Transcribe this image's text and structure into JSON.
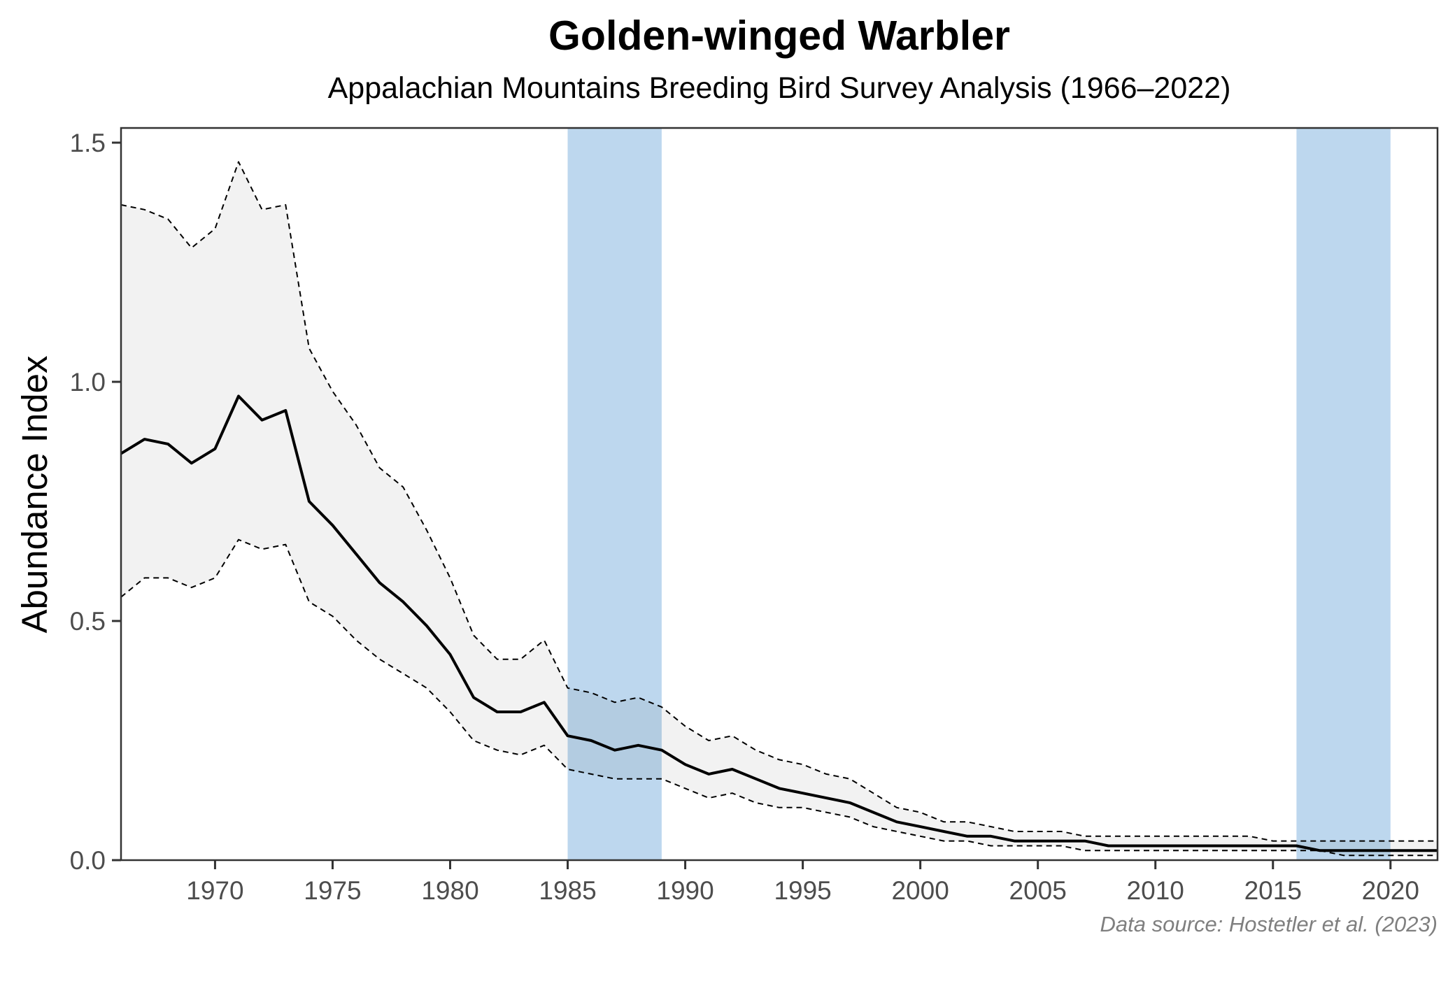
{
  "chart_data": {
    "type": "line",
    "title": "Golden-winged Warbler",
    "subtitle": "Appalachian Mountains Breeding Bird Survey Analysis (1966–2022)",
    "xlabel": "",
    "ylabel": "Abundance Index",
    "caption": "Data source: Hostetler et al. (2023)",
    "xlim": [
      1966,
      2022
    ],
    "ylim": [
      0,
      1.5
    ],
    "x_ticks": [
      1970,
      1975,
      1980,
      1985,
      1990,
      1995,
      2000,
      2005,
      2010,
      2015,
      2020
    ],
    "x_tick_labels": [
      "1970",
      "1975",
      "1980",
      "1985",
      "1990",
      "1995",
      "2000",
      "2005",
      "2010",
      "2015",
      "2020"
    ],
    "y_ticks": [
      0,
      0.5,
      1.0,
      1.5
    ],
    "y_tick_labels": [
      "0.0",
      "0.5",
      "1.0",
      "1.5"
    ],
    "grid": false,
    "legend": "none",
    "colors": {
      "line": "#000000",
      "ribbon": "#f2f2f2",
      "highlight": "#bdd7ee",
      "axis": "#333333",
      "tick_text": "#4d4d4d",
      "caption": "#7f7f7f"
    },
    "highlight_periods": [
      {
        "start": 1985,
        "end": 1989
      },
      {
        "start": 2016,
        "end": 2020
      }
    ],
    "x": [
      1966,
      1967,
      1968,
      1969,
      1970,
      1971,
      1972,
      1973,
      1974,
      1975,
      1976,
      1977,
      1978,
      1979,
      1980,
      1981,
      1982,
      1983,
      1984,
      1985,
      1986,
      1987,
      1988,
      1989,
      1990,
      1991,
      1992,
      1993,
      1994,
      1995,
      1996,
      1997,
      1998,
      1999,
      2000,
      2001,
      2002,
      2003,
      2004,
      2005,
      2006,
      2007,
      2008,
      2009,
      2010,
      2011,
      2012,
      2013,
      2014,
      2015,
      2016,
      2017,
      2018,
      2019,
      2020,
      2021,
      2022
    ],
    "series": [
      {
        "name": "Abundance Index",
        "style": "solid",
        "values": [
          0.85,
          0.88,
          0.87,
          0.83,
          0.86,
          0.97,
          0.92,
          0.94,
          0.75,
          0.7,
          0.64,
          0.58,
          0.54,
          0.49,
          0.43,
          0.34,
          0.31,
          0.31,
          0.33,
          0.26,
          0.25,
          0.23,
          0.24,
          0.23,
          0.2,
          0.18,
          0.19,
          0.17,
          0.15,
          0.14,
          0.13,
          0.12,
          0.1,
          0.08,
          0.07,
          0.06,
          0.05,
          0.05,
          0.04,
          0.04,
          0.04,
          0.04,
          0.03,
          0.03,
          0.03,
          0.03,
          0.03,
          0.03,
          0.03,
          0.03,
          0.03,
          0.02,
          0.02,
          0.02,
          0.02,
          0.02,
          0.02
        ]
      },
      {
        "name": "Upper credible interval",
        "style": "dashed",
        "values": [
          1.37,
          1.36,
          1.34,
          1.28,
          1.32,
          1.46,
          1.36,
          1.37,
          1.07,
          0.98,
          0.91,
          0.82,
          0.78,
          0.69,
          0.59,
          0.47,
          0.42,
          0.42,
          0.46,
          0.36,
          0.35,
          0.33,
          0.34,
          0.32,
          0.28,
          0.25,
          0.26,
          0.23,
          0.21,
          0.2,
          0.18,
          0.17,
          0.14,
          0.11,
          0.1,
          0.08,
          0.08,
          0.07,
          0.06,
          0.06,
          0.06,
          0.05,
          0.05,
          0.05,
          0.05,
          0.05,
          0.05,
          0.05,
          0.05,
          0.04,
          0.04,
          0.04,
          0.04,
          0.04,
          0.04,
          0.04,
          0.04
        ]
      },
      {
        "name": "Lower credible interval",
        "style": "dashed",
        "values": [
          0.55,
          0.59,
          0.59,
          0.57,
          0.59,
          0.67,
          0.65,
          0.66,
          0.54,
          0.51,
          0.46,
          0.42,
          0.39,
          0.36,
          0.31,
          0.25,
          0.23,
          0.22,
          0.24,
          0.19,
          0.18,
          0.17,
          0.17,
          0.17,
          0.15,
          0.13,
          0.14,
          0.12,
          0.11,
          0.11,
          0.1,
          0.09,
          0.07,
          0.06,
          0.05,
          0.04,
          0.04,
          0.03,
          0.03,
          0.03,
          0.03,
          0.02,
          0.02,
          0.02,
          0.02,
          0.02,
          0.02,
          0.02,
          0.02,
          0.02,
          0.02,
          0.02,
          0.01,
          0.01,
          0.01,
          0.01,
          0.01
        ]
      }
    ]
  }
}
